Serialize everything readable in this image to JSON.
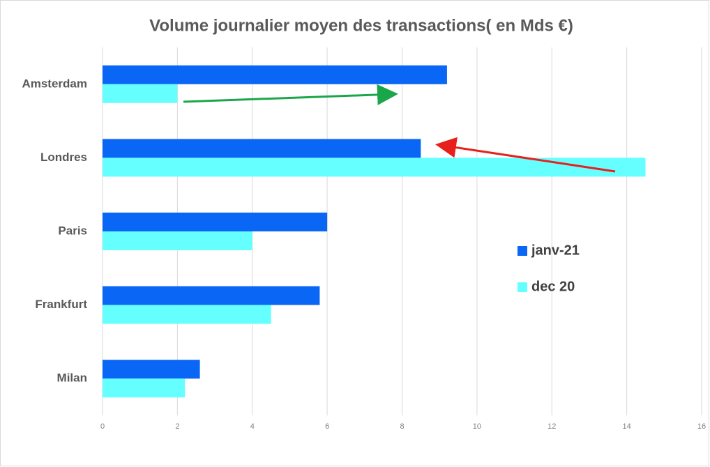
{
  "chart_data": {
    "type": "barh",
    "title": "Volume journalier moyen des transactions( en Mds €)",
    "categories": [
      "Amsterdam",
      "Londres",
      "Paris",
      "Frankfurt",
      "Milan"
    ],
    "series": [
      {
        "name": "janv-21",
        "color": "#0a66f5",
        "values": [
          9.2,
          8.5,
          6.0,
          5.8,
          2.6
        ]
      },
      {
        "name": "dec 20",
        "color": "#66ffff",
        "values": [
          2.0,
          14.5,
          4.0,
          4.5,
          2.2
        ]
      }
    ],
    "xlim": [
      0,
      16
    ],
    "xticks": [
      0,
      2,
      4,
      6,
      8,
      10,
      12,
      14,
      16
    ],
    "grid": true,
    "legend": "right"
  }
}
